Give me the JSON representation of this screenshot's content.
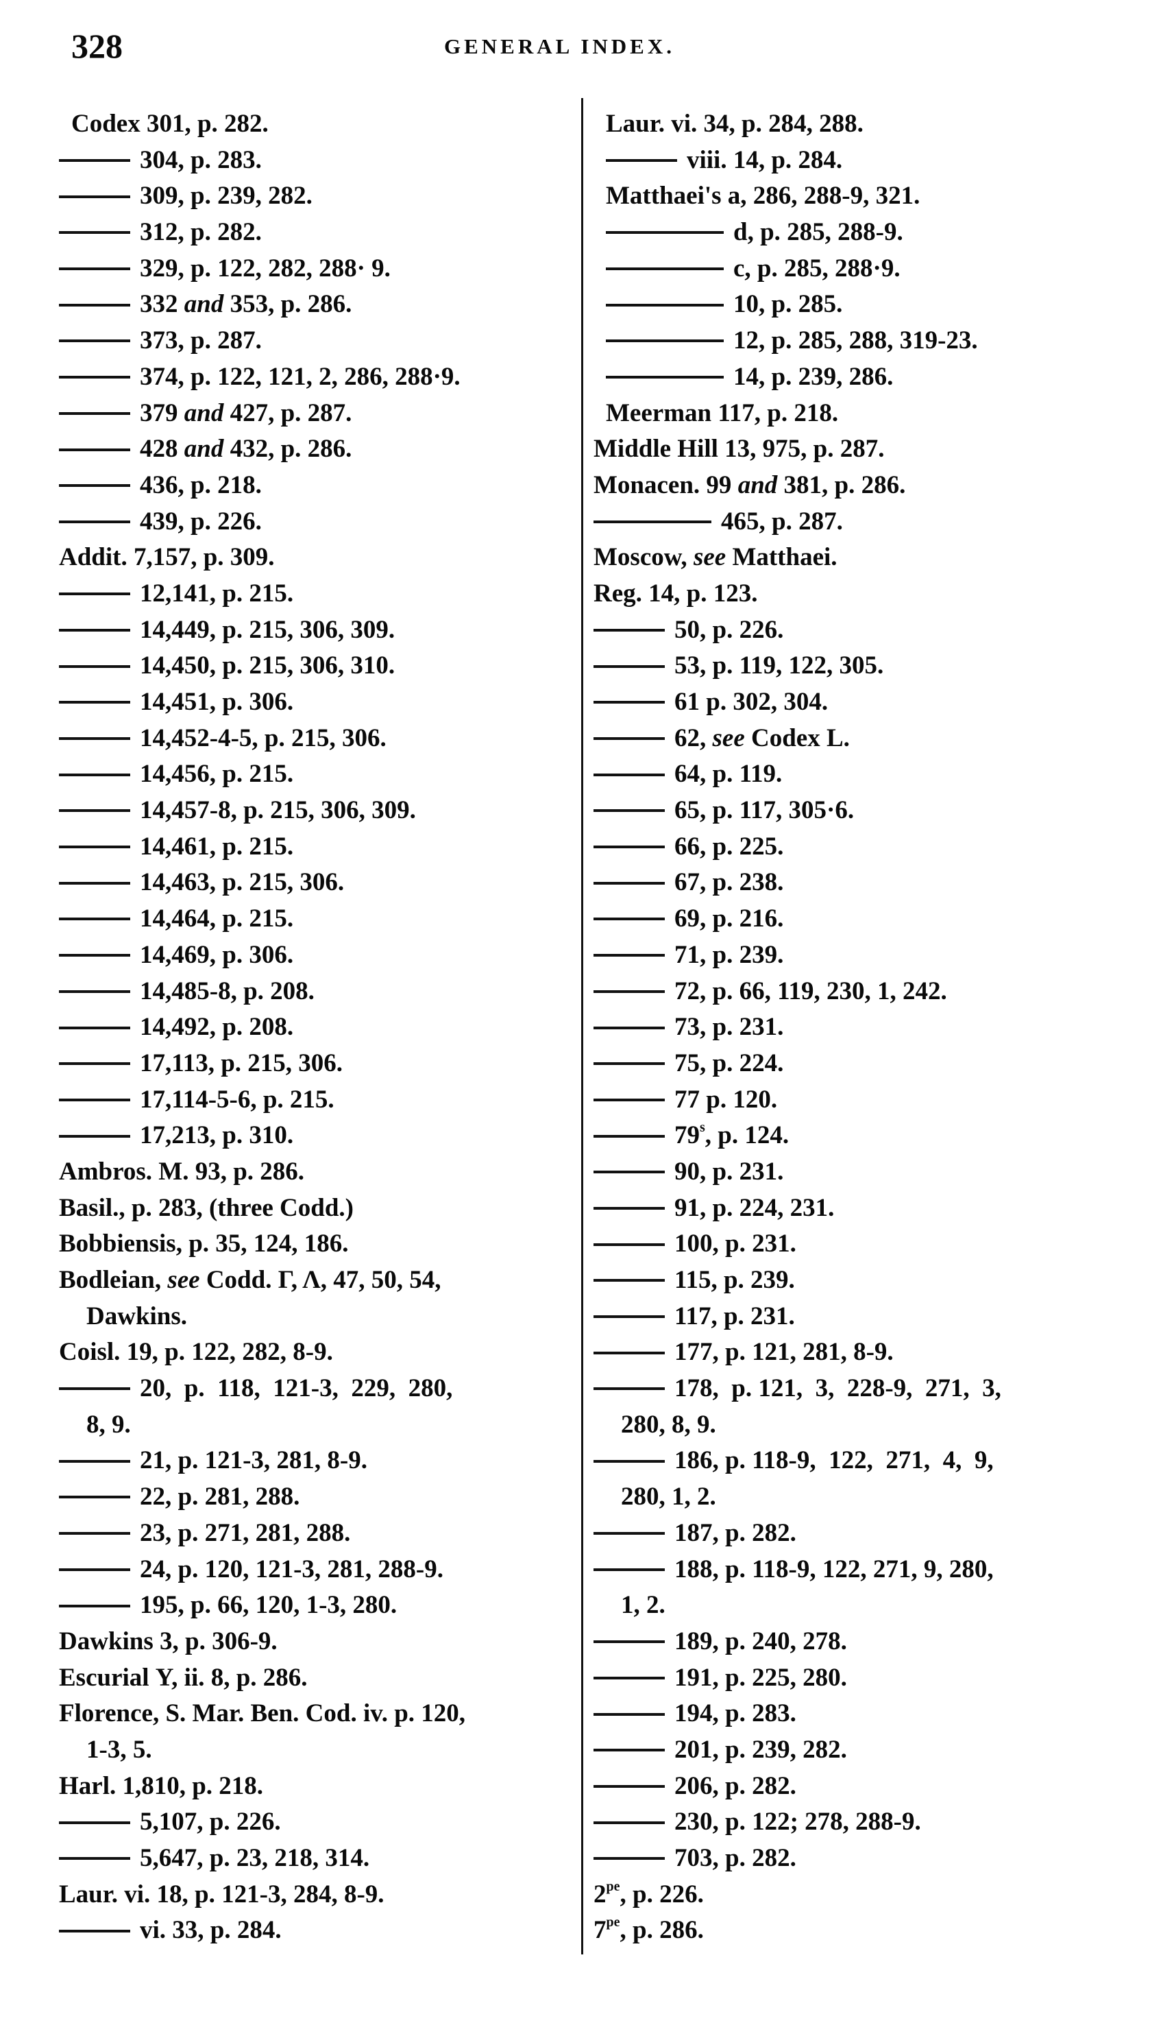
{
  "header": {
    "page_number": "328",
    "running_head": "GENERAL INDEX."
  },
  "columns": {
    "left": [
      {
        "indent": true,
        "segs": [
          {
            "text": "Codex 301, p. 282."
          }
        ]
      },
      {
        "dash": "short",
        "segs": [
          {
            "text": "304, p. 283."
          }
        ]
      },
      {
        "dash": "short",
        "segs": [
          {
            "text": "309, p. 239, 282."
          }
        ]
      },
      {
        "dash": "short",
        "segs": [
          {
            "text": "312, p. 282."
          }
        ]
      },
      {
        "dash": "short",
        "segs": [
          {
            "text": "329, p. 122, 282, 288· 9."
          }
        ]
      },
      {
        "dash": "short",
        "segs": [
          {
            "text": "332 "
          },
          {
            "text": "and",
            "style": "italic"
          },
          {
            "text": " 353, p. 286."
          }
        ]
      },
      {
        "dash": "short",
        "segs": [
          {
            "text": "373, p. 287."
          }
        ]
      },
      {
        "dash": "short",
        "segs": [
          {
            "text": "374, p. 122, 121, 2, 286, 288·9."
          }
        ]
      },
      {
        "dash": "short",
        "segs": [
          {
            "text": "379 "
          },
          {
            "text": "and",
            "style": "italic"
          },
          {
            "text": " 427, p. 287."
          }
        ]
      },
      {
        "dash": "short",
        "segs": [
          {
            "text": "428 "
          },
          {
            "text": "and",
            "style": "italic"
          },
          {
            "text": " 432, p. 286."
          }
        ]
      },
      {
        "dash": "short",
        "segs": [
          {
            "text": "436, p. 218."
          }
        ]
      },
      {
        "dash": "short",
        "segs": [
          {
            "text": "439, p. 226."
          }
        ]
      },
      {
        "segs": [
          {
            "text": "Addit. 7,157, p. 309."
          }
        ]
      },
      {
        "dash": "short",
        "segs": [
          {
            "text": "12,141, p. 215."
          }
        ]
      },
      {
        "dash": "short",
        "segs": [
          {
            "text": "14,449, p. 215, 306, 309."
          }
        ]
      },
      {
        "dash": "short",
        "segs": [
          {
            "text": "14,450, p. 215, 306, 310."
          }
        ]
      },
      {
        "dash": "short",
        "segs": [
          {
            "text": "14,451, p. 306."
          }
        ]
      },
      {
        "dash": "short",
        "segs": [
          {
            "text": "14,452-4-5, p. 215, 306."
          }
        ]
      },
      {
        "dash": "short",
        "segs": [
          {
            "text": "14,456, p. 215."
          }
        ]
      },
      {
        "dash": "short",
        "segs": [
          {
            "text": "14,457-8, p. 215, 306, 309."
          }
        ]
      },
      {
        "dash": "short",
        "segs": [
          {
            "text": "14,461, p. 215."
          }
        ]
      },
      {
        "dash": "short",
        "segs": [
          {
            "text": "14,463, p. 215, 306."
          }
        ]
      },
      {
        "dash": "short",
        "segs": [
          {
            "text": "14,464, p. 215."
          }
        ]
      },
      {
        "dash": "short",
        "segs": [
          {
            "text": "14,469, p. 306."
          }
        ]
      },
      {
        "dash": "short",
        "segs": [
          {
            "text": "14,485-8, p. 208."
          }
        ]
      },
      {
        "dash": "short",
        "segs": [
          {
            "text": "14,492, p. 208."
          }
        ]
      },
      {
        "dash": "short",
        "segs": [
          {
            "text": "17,113, p. 215, 306."
          }
        ]
      },
      {
        "dash": "short",
        "segs": [
          {
            "text": "17,114-5-6, p. 215."
          }
        ]
      },
      {
        "dash": "short",
        "segs": [
          {
            "text": "17,213, p. 310."
          }
        ]
      },
      {
        "segs": [
          {
            "text": "Ambros. M. 93, p. 286."
          }
        ]
      },
      {
        "segs": [
          {
            "text": "Basil., p. 283, (three Codd.)"
          }
        ]
      },
      {
        "segs": [
          {
            "text": "Bobbiensis, p. 35, 124, 186."
          }
        ]
      },
      {
        "segs": [
          {
            "text": "Bodleian, "
          },
          {
            "text": "see",
            "style": "italic"
          },
          {
            "text": " Codd. Γ, Λ, 47, 50, 54,"
          }
        ]
      },
      {
        "cont": true,
        "segs": [
          {
            "text": "Dawkins."
          }
        ]
      },
      {
        "segs": [
          {
            "text": "Coisl. 19, p. 122, 282, 8-9."
          }
        ]
      },
      {
        "dash": "short",
        "segs": [
          {
            "text": "20,  p.  118,  121-3,  229,  280,"
          }
        ]
      },
      {
        "cont": true,
        "segs": [
          {
            "text": "8, 9."
          }
        ]
      },
      {
        "dash": "short",
        "segs": [
          {
            "text": "21, p. 121-3, 281, 8-9."
          }
        ]
      },
      {
        "dash": "short",
        "segs": [
          {
            "text": "22, p. 281, 288."
          }
        ]
      },
      {
        "dash": "short",
        "segs": [
          {
            "text": "23, p. 271, 281, 288."
          }
        ]
      },
      {
        "dash": "short",
        "segs": [
          {
            "text": "24, p. 120, 121-3, 281, 288-9."
          }
        ]
      },
      {
        "dash": "short",
        "segs": [
          {
            "text": "195, p. 66, 120, 1-3, 280."
          }
        ]
      },
      {
        "segs": [
          {
            "text": "Dawkins 3, p. 306-9."
          }
        ]
      },
      {
        "segs": [
          {
            "text": "Escurial Υ, ii. 8, p. 286."
          }
        ]
      },
      {
        "segs": [
          {
            "text": "Florence, S. Mar. Ben. Cod. iv. p. 120,"
          }
        ]
      },
      {
        "cont": true,
        "segs": [
          {
            "text": "1-3, 5."
          }
        ]
      },
      {
        "segs": [
          {
            "text": "Harl. 1,810, p. 218."
          }
        ]
      },
      {
        "dash": "short",
        "segs": [
          {
            "text": "5,107, p. 226."
          }
        ]
      },
      {
        "dash": "short",
        "segs": [
          {
            "text": "5,647, p. 23, 218, 314."
          }
        ]
      },
      {
        "segs": [
          {
            "text": "Laur. vi. 18, p. 121-3, 284, 8-9."
          }
        ]
      },
      {
        "dash": "short",
        "segs": [
          {
            "text": "vi. 33, p. 284."
          }
        ]
      }
    ],
    "right": [
      {
        "indent": true,
        "segs": [
          {
            "text": "Laur. vi. 34, p. 284, 288."
          }
        ]
      },
      {
        "indent": true,
        "dash": "short",
        "segs": [
          {
            "text": "viii. 14, p. 284."
          }
        ]
      },
      {
        "indent": true,
        "segs": [
          {
            "text": "Matthaei's a, 286, 288-9, 321."
          }
        ]
      },
      {
        "indent": true,
        "dash": "long",
        "segs": [
          {
            "text": "d, p. 285, 288-9."
          }
        ]
      },
      {
        "indent": true,
        "dash": "long",
        "segs": [
          {
            "text": "c, p. 285, 288·9."
          }
        ]
      },
      {
        "indent": true,
        "dash": "long",
        "segs": [
          {
            "text": "10, p. 285."
          }
        ]
      },
      {
        "indent": true,
        "dash": "long",
        "segs": [
          {
            "text": "12, p. 285, 288, 319-23."
          }
        ]
      },
      {
        "indent": true,
        "dash": "long",
        "segs": [
          {
            "text": "14, p. 239, 286."
          }
        ]
      },
      {
        "indent": true,
        "segs": [
          {
            "text": "Meerman 117, p. 218."
          }
        ]
      },
      {
        "segs": [
          {
            "text": "Middle Hill 13, 975, p. 287."
          }
        ]
      },
      {
        "segs": [
          {
            "text": "Monacen. 99 "
          },
          {
            "text": "and",
            "style": "italic"
          },
          {
            "text": " 381, p. 286."
          }
        ]
      },
      {
        "dash": "long",
        "segs": [
          {
            "text": "465, p. 287."
          }
        ]
      },
      {
        "segs": [
          {
            "text": "Moscow, "
          },
          {
            "text": "see",
            "style": "italic"
          },
          {
            "text": " Matthaei."
          }
        ]
      },
      {
        "segs": [
          {
            "text": "Reg. 14, p. 123."
          }
        ]
      },
      {
        "dash": "short",
        "segs": [
          {
            "text": "50, p. 226."
          }
        ]
      },
      {
        "dash": "short",
        "segs": [
          {
            "text": "53, p. 119, 122, 305."
          }
        ]
      },
      {
        "dash": "short",
        "segs": [
          {
            "text": "61 p. 302, 304."
          }
        ]
      },
      {
        "dash": "short",
        "segs": [
          {
            "text": "62, "
          },
          {
            "text": "see",
            "style": "italic"
          },
          {
            "text": " Codex L."
          }
        ]
      },
      {
        "dash": "short",
        "segs": [
          {
            "text": "64, p. 119."
          }
        ]
      },
      {
        "dash": "short",
        "segs": [
          {
            "text": "65, p. 117, 305·6."
          }
        ]
      },
      {
        "dash": "short",
        "segs": [
          {
            "text": "66, p. 225."
          }
        ]
      },
      {
        "dash": "short",
        "segs": [
          {
            "text": "67, p. 238."
          }
        ]
      },
      {
        "dash": "short",
        "segs": [
          {
            "text": "69, p. 216."
          }
        ]
      },
      {
        "dash": "short",
        "segs": [
          {
            "text": "71, p. 239."
          }
        ]
      },
      {
        "dash": "short",
        "segs": [
          {
            "text": "72, p. 66, 119, 230, 1, 242."
          }
        ]
      },
      {
        "dash": "short",
        "segs": [
          {
            "text": "73, p. 231."
          }
        ]
      },
      {
        "dash": "short",
        "segs": [
          {
            "text": "75, p. 224."
          }
        ]
      },
      {
        "dash": "short",
        "segs": [
          {
            "text": "77 p. 120."
          }
        ]
      },
      {
        "dash": "short",
        "segs": [
          {
            "text": "79"
          },
          {
            "text": "s",
            "style": "sup"
          },
          {
            "text": ", p. 124."
          }
        ]
      },
      {
        "dash": "short",
        "segs": [
          {
            "text": "90, p. 231."
          }
        ]
      },
      {
        "dash": "short",
        "segs": [
          {
            "text": "91, p. 224, 231."
          }
        ]
      },
      {
        "dash": "short",
        "segs": [
          {
            "text": "100, p. 231."
          }
        ]
      },
      {
        "dash": "short",
        "segs": [
          {
            "text": "115, p. 239."
          }
        ]
      },
      {
        "dash": "short",
        "segs": [
          {
            "text": "117, p. 231."
          }
        ]
      },
      {
        "dash": "short",
        "segs": [
          {
            "text": "177, p. 121, 281, 8-9."
          }
        ]
      },
      {
        "dash": "short",
        "segs": [
          {
            "text": "178,  p. 121,  3,  228-9,  271,  3,"
          }
        ]
      },
      {
        "cont": true,
        "segs": [
          {
            "text": "280, 8, 9."
          }
        ]
      },
      {
        "dash": "short",
        "segs": [
          {
            "text": "186, p. 118-9,  122,  271,  4,  9,"
          }
        ]
      },
      {
        "cont": true,
        "segs": [
          {
            "text": "280, 1, 2."
          }
        ]
      },
      {
        "dash": "short",
        "segs": [
          {
            "text": "187, p. 282."
          }
        ]
      },
      {
        "dash": "short",
        "segs": [
          {
            "text": "188, p. 118-9, 122, 271, 9, 280,"
          }
        ]
      },
      {
        "cont": true,
        "segs": [
          {
            "text": "1, 2."
          }
        ]
      },
      {
        "dash": "short",
        "segs": [
          {
            "text": "189, p. 240, 278."
          }
        ]
      },
      {
        "dash": "short",
        "segs": [
          {
            "text": "191, p. 225, 280."
          }
        ]
      },
      {
        "dash": "short",
        "segs": [
          {
            "text": "194, p. 283."
          }
        ]
      },
      {
        "dash": "short",
        "segs": [
          {
            "text": "201, p. 239, 282."
          }
        ]
      },
      {
        "dash": "short",
        "segs": [
          {
            "text": "206, p. 282."
          }
        ]
      },
      {
        "dash": "short",
        "segs": [
          {
            "text": "230, p. 122; 278, 288-9."
          }
        ]
      },
      {
        "dash": "short",
        "segs": [
          {
            "text": "703, p. 282."
          }
        ]
      },
      {
        "segs": [
          {
            "text": "2"
          },
          {
            "text": "pe",
            "style": "sup"
          },
          {
            "text": ", p. 226."
          }
        ]
      },
      {
        "segs": [
          {
            "text": "7"
          },
          {
            "text": "pe",
            "style": "sup"
          },
          {
            "text": ", p. 286."
          }
        ]
      }
    ]
  }
}
